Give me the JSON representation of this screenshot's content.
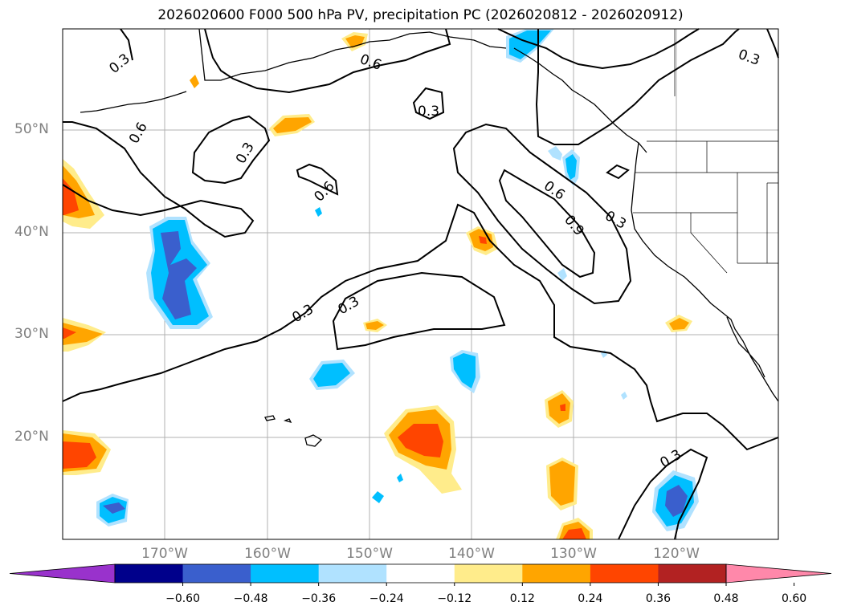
{
  "title": "2026020600 F000 500 hPa PV, precipitation PC (2026020812 - 2026020912)",
  "axes": {
    "lat_labels": [
      "50°N",
      "40°N",
      "30°N",
      "20°N"
    ],
    "lon_labels": [
      "170°W",
      "160°W",
      "150°W",
      "140°W",
      "130°W",
      "120°W"
    ]
  },
  "contour_labels": [
    "0.3",
    "0.6",
    "0.3",
    "0.6",
    "0.3",
    "0.6",
    "0.3",
    "0.6",
    "0.9",
    "0.3",
    "0.3",
    "0.3",
    "0.3"
  ],
  "colorbar": {
    "colors": [
      "#9932cc",
      "#00008b",
      "#3a5fcd",
      "#00bfff",
      "#b0e2ff",
      "#ffffff",
      "#ffec8b",
      "#ffa500",
      "#ff4500",
      "#b22222",
      "#ff88aa"
    ],
    "ticks": [
      "−0.60",
      "−0.48",
      "−0.36",
      "−0.24",
      "−0.12",
      "0.12",
      "0.24",
      "0.36",
      "0.48",
      "0.60"
    ]
  }
}
